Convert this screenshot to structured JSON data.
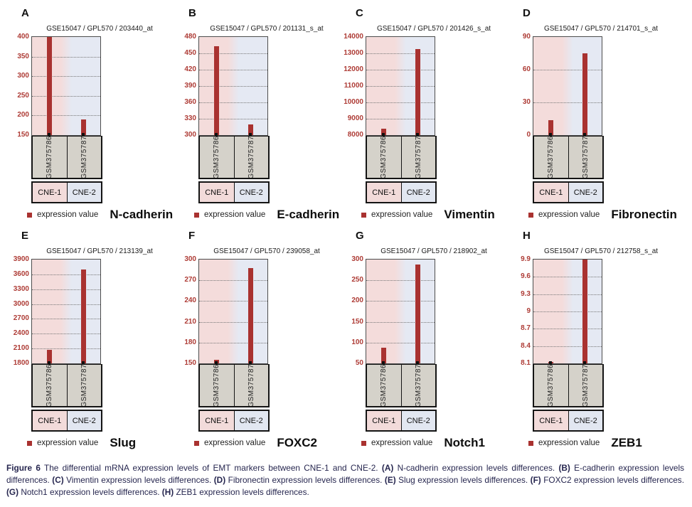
{
  "figure": {
    "legend_label": "expression value",
    "samples": [
      "GSM375786",
      "GSM375787"
    ],
    "categories": [
      "CNE-1",
      "CNE-2"
    ],
    "colors": {
      "bar": "#a93230",
      "tick_text": "#ae3c36",
      "plot_pink": "#f4dcdb",
      "plot_blue": "#e5e9f3",
      "sample_cell": "#d5d2ca",
      "category_pink": "#f2dbda",
      "category_blue": "#e2e7f1",
      "caption_text": "#26264f"
    }
  },
  "chart_data": [
    {
      "type": "bar",
      "panel": "A",
      "title": "GSE15047 / GPL570 / 203440_at",
      "gene": "N-cadherin",
      "categories": [
        "CNE-1",
        "CNE-2"
      ],
      "samples": [
        "GSM375786",
        "GSM375787"
      ],
      "series_label": "expression value",
      "values": [
        400,
        190
      ],
      "ylim": [
        150,
        400
      ],
      "yticks": [
        400,
        350,
        300,
        250,
        200,
        150
      ],
      "grid": "dotted",
      "legend_position": "bottom-left"
    },
    {
      "type": "bar",
      "panel": "B",
      "title": "GSE15047 / GPL570 / 201131_s_at",
      "gene": "E-cadherin",
      "categories": [
        "CNE-1",
        "CNE-2"
      ],
      "samples": [
        "GSM375786",
        "GSM375787"
      ],
      "series_label": "expression value",
      "values": [
        463,
        320
      ],
      "ylim": [
        300,
        480
      ],
      "yticks": [
        480,
        450,
        420,
        390,
        360,
        330,
        300
      ],
      "grid": "dotted",
      "legend_position": "bottom-left"
    },
    {
      "type": "bar",
      "panel": "C",
      "title": "GSE15047 / GPL570 / 201426_s_at",
      "gene": "Vimentin",
      "categories": [
        "CNE-1",
        "CNE-2"
      ],
      "samples": [
        "GSM375786",
        "GSM375787"
      ],
      "series_label": "expression value",
      "values": [
        8400,
        13250
      ],
      "ylim": [
        8000,
        14000
      ],
      "yticks": [
        14000,
        13000,
        12000,
        11000,
        10000,
        9000,
        8000
      ],
      "grid": "dotted",
      "legend_position": "bottom-left"
    },
    {
      "type": "bar",
      "panel": "D",
      "title": "GSE15047 / GPL570 / 214701_s_at",
      "gene": "Fibronectin",
      "categories": [
        "CNE-1",
        "CNE-2"
      ],
      "samples": [
        "GSM375786",
        "GSM375787"
      ],
      "series_label": "expression value",
      "values": [
        14,
        75
      ],
      "ylim": [
        0,
        90
      ],
      "yticks": [
        90,
        60,
        30,
        0
      ],
      "grid": "dotted",
      "legend_position": "bottom-left"
    },
    {
      "type": "bar",
      "panel": "E",
      "title": "GSE15047 / GPL570 / 213139_at",
      "gene": "Slug",
      "categories": [
        "CNE-1",
        "CNE-2"
      ],
      "samples": [
        "GSM375786",
        "GSM375787"
      ],
      "series_label": "expression value",
      "values": [
        2080,
        3695
      ],
      "ylim": [
        1800,
        3900
      ],
      "yticks": [
        3900,
        3600,
        3300,
        3000,
        2700,
        2400,
        2100,
        1800
      ],
      "grid": "dotted",
      "legend_position": "bottom-left"
    },
    {
      "type": "bar",
      "panel": "F",
      "title": "GSE15047 / GPL570 / 239058_at",
      "gene": "FOXC2",
      "categories": [
        "CNE-1",
        "CNE-2"
      ],
      "samples": [
        "GSM375786",
        "GSM375787"
      ],
      "series_label": "expression value",
      "values": [
        155,
        288
      ],
      "ylim": [
        150,
        300
      ],
      "yticks": [
        300,
        270,
        240,
        210,
        180,
        150
      ],
      "grid": "dotted",
      "legend_position": "bottom-left"
    },
    {
      "type": "bar",
      "panel": "G",
      "title": "GSE15047 / GPL570 / 218902_at",
      "gene": "Notch1",
      "categories": [
        "CNE-1",
        "CNE-2"
      ],
      "samples": [
        "GSM375786",
        "GSM375787"
      ],
      "series_label": "expression value",
      "values": [
        88,
        288
      ],
      "ylim": [
        50,
        300
      ],
      "yticks": [
        300,
        250,
        200,
        150,
        100,
        50
      ],
      "grid": "dotted",
      "legend_position": "bottom-left"
    },
    {
      "type": "bar",
      "panel": "H",
      "title": "GSE15047 / GPL570 / 212758_s_at",
      "gene": "ZEB1",
      "categories": [
        "CNE-1",
        "CNE-2"
      ],
      "samples": [
        "GSM375786",
        "GSM375787"
      ],
      "series_label": "expression value",
      "values": [
        8.12,
        9.9
      ],
      "ylim": [
        8.1,
        9.9
      ],
      "yticks": [
        9.9,
        9.6,
        9.3,
        9,
        8.7,
        8.4,
        8.1
      ],
      "grid": "dotted",
      "legend_position": "bottom-left"
    }
  ],
  "caption": {
    "segments": [
      {
        "t": "Figure 6",
        "b": true
      },
      {
        "t": " The differential mRNA expression levels of EMT markers between CNE-1 and CNE-2. ",
        "b": false
      },
      {
        "t": "(A)",
        "b": true
      },
      {
        "t": " N-cadherin expression levels differences. ",
        "b": false
      },
      {
        "t": "(B)",
        "b": true
      },
      {
        "t": " E-cadherin expression levels differences. ",
        "b": false
      },
      {
        "t": "(C)",
        "b": true
      },
      {
        "t": " Vimentin expression levels differences. ",
        "b": false
      },
      {
        "t": "(D)",
        "b": true
      },
      {
        "t": " Fibronectin expression levels differences. ",
        "b": false
      },
      {
        "t": "(E)",
        "b": true
      },
      {
        "t": " Slug expression levels differences. ",
        "b": false
      },
      {
        "t": "(F)",
        "b": true
      },
      {
        "t": " FOXC2 expression levels differences. ",
        "b": false
      },
      {
        "t": "(G)",
        "b": true
      },
      {
        "t": " Notch1  expression levels differences. ",
        "b": false
      },
      {
        "t": "(H)",
        "b": true
      },
      {
        "t": " ZEB1 expression levels differences.",
        "b": false
      }
    ]
  }
}
